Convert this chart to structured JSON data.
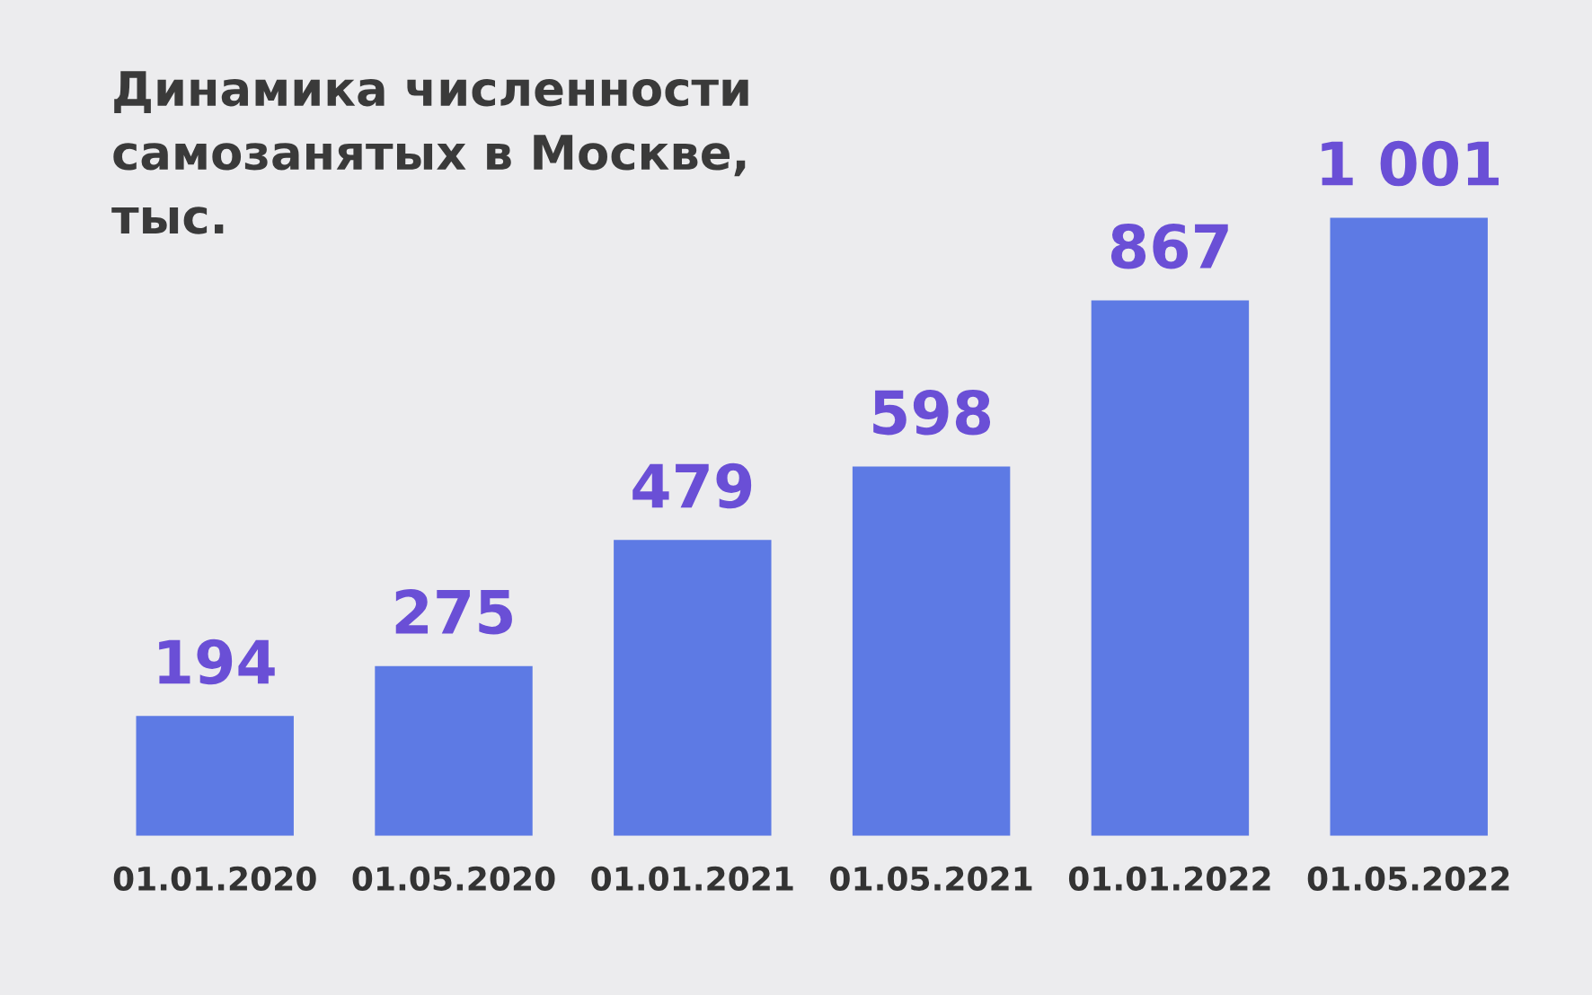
{
  "chart_data": {
    "type": "bar",
    "title": "Динамика численности\nсамозанятых в Москве,\nтыс.",
    "categories": [
      "01.01.2020",
      "01.05.2020",
      "01.01.2021",
      "01.05.2021",
      "01.01.2022",
      "01.05.2022"
    ],
    "values": [
      194,
      275,
      479,
      598,
      867,
      1001
    ],
    "value_labels": [
      "194",
      "275",
      "479",
      "598",
      "867",
      "1 001"
    ],
    "color": "#5d7ae4",
    "grid": false,
    "legend": false
  }
}
